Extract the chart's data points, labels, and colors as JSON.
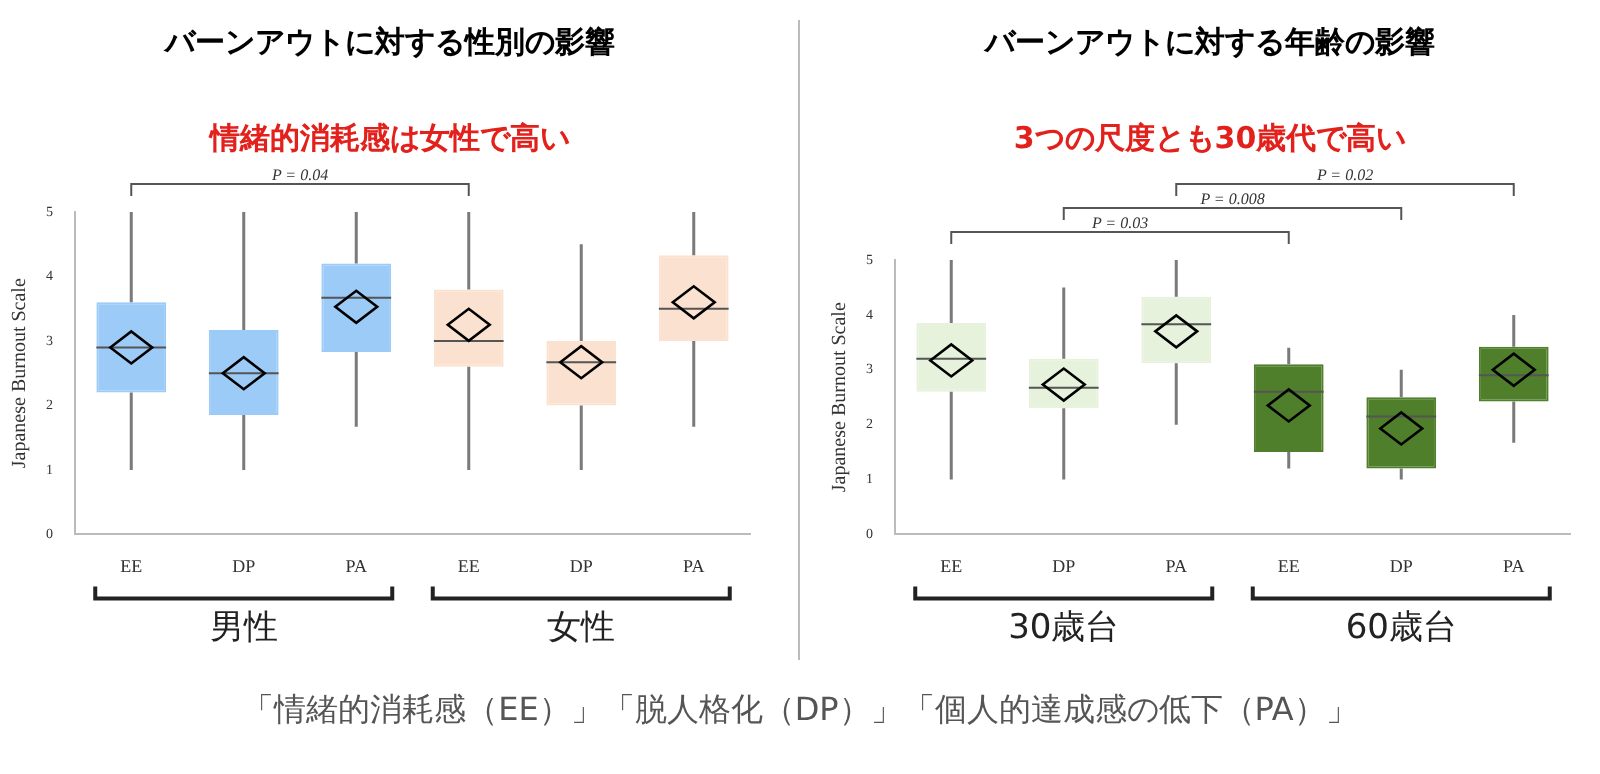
{
  "chart_data": [
    {
      "type": "box",
      "title": "バーンアウトに対する性別の影響",
      "subtitle": "情緒的消耗感は女性で高い",
      "ylabel": "Japanese Burnout Scale",
      "categories": [
        "EE",
        "DP",
        "PA",
        "EE",
        "DP",
        "PA"
      ],
      "boxes": [
        {
          "low": 1,
          "q1": 2.2,
          "median": 2.9,
          "q3": 3.6,
          "high": 5,
          "mean": 2.9
        },
        {
          "low": 1,
          "q1": 1.85,
          "median": 2.5,
          "q3": 3.17,
          "high": 5,
          "mean": 2.5
        },
        {
          "low": 1.67,
          "q1": 2.83,
          "median": 3.67,
          "q3": 4.2,
          "high": 5,
          "mean": 3.53
        },
        {
          "low": 1,
          "q1": 2.6,
          "median": 3,
          "q3": 3.8,
          "high": 5,
          "mean": 3.25
        },
        {
          "low": 1,
          "q1": 2,
          "median": 2.67,
          "q3": 3,
          "high": 4.5,
          "mean": 2.67
        },
        {
          "low": 1.67,
          "q1": 3,
          "median": 3.5,
          "q3": 4.33,
          "high": 5,
          "mean": 3.6
        }
      ],
      "colors": [
        "#9dcbf7",
        "#9dcbf7",
        "#9dcbf7",
        "#fbe2d0",
        "#fbe2d0",
        "#fbe2d0"
      ],
      "ylim": [
        0,
        5
      ],
      "yticks": [
        0,
        1,
        2,
        3,
        4,
        5
      ],
      "grid": false,
      "legend": false,
      "annotations": [
        "P = 0.04",
        "男性",
        "女性"
      ]
    },
    {
      "type": "box",
      "title": "バーンアウトに対する年齢の影響",
      "subtitle": "3つの尺度とも30歳代で高い",
      "ylabel": "Japanese Burnout Scale",
      "categories": [
        "EE",
        "DP",
        "PA",
        "EE",
        "DP",
        "PA"
      ],
      "boxes": [
        {
          "low": 1,
          "q1": 2.6,
          "median": 3.2,
          "q3": 3.85,
          "high": 5,
          "mean": 3.17
        },
        {
          "low": 1,
          "q1": 2.3,
          "median": 2.67,
          "q3": 3.2,
          "high": 4.5,
          "mean": 2.73
        },
        {
          "low": 2,
          "q1": 3.12,
          "median": 3.83,
          "q3": 4.33,
          "high": 5,
          "mean": 3.7
        },
        {
          "low": 1.2,
          "q1": 1.5,
          "median": 2.6,
          "q3": 3.1,
          "high": 3.4,
          "mean": 2.35
        },
        {
          "low": 1,
          "q1": 1.2,
          "median": 2.15,
          "q3": 2.5,
          "high": 3,
          "mean": 1.93
        },
        {
          "low": 1.67,
          "q1": 2.42,
          "median": 2.9,
          "q3": 3.42,
          "high": 4,
          "mean": 3
        }
      ],
      "colors": [
        "#e6f2dc",
        "#e6f2dc",
        "#e6f2dc",
        "#4f7f2b",
        "#4f7f2b",
        "#4f7f2b"
      ],
      "ylim": [
        0,
        5
      ],
      "yticks": [
        0,
        1,
        2,
        3,
        4,
        5
      ],
      "grid": false,
      "legend": false,
      "annotations": [
        "P = 0.03",
        "P = 0.008",
        "P = 0.02",
        "30歳台",
        "60歳台"
      ]
    },
    {
      "type": "other",
      "annotations": [
        "「情緒的消耗感（EE）」「脱人格化（DP）」「個人的達成感の低下（PA）」"
      ]
    }
  ]
}
